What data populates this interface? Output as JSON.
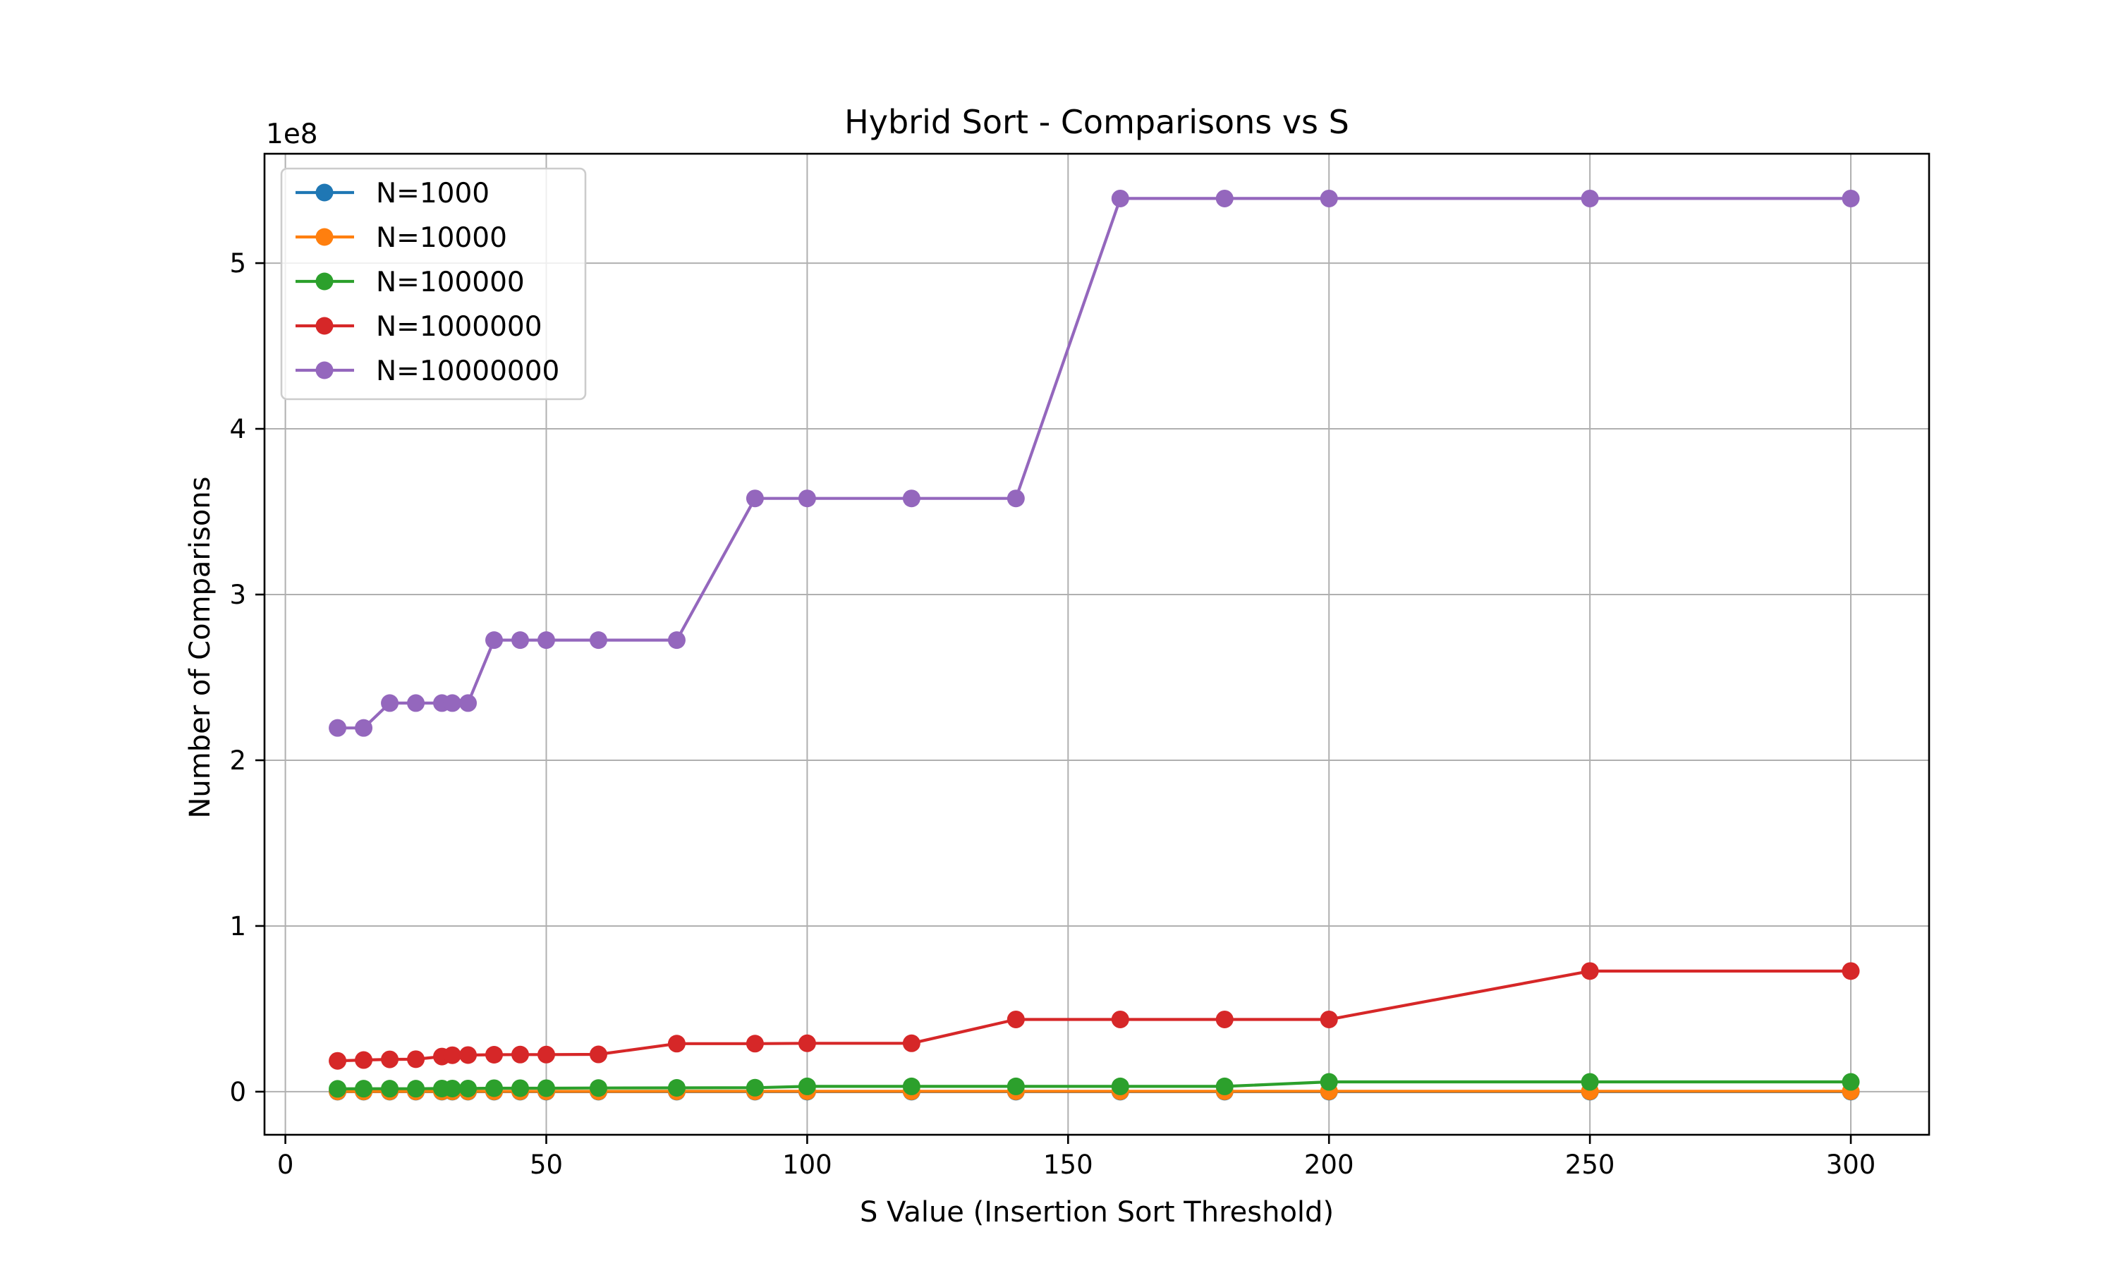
{
  "chart_data": {
    "type": "line",
    "title": "Hybrid Sort - Comparisons vs S",
    "xlabel": "S Value (Insertion Sort Threshold)",
    "ylabel": "Number of Comparisons",
    "y_offset_label": "1e8",
    "y_scale_factor": 100000000,
    "xlim": [
      -4,
      315
    ],
    "ylim": [
      -26000000,
      566000000
    ],
    "xticks": [
      0,
      50,
      100,
      150,
      200,
      250,
      300
    ],
    "xtick_labels": [
      "0",
      "50",
      "100",
      "150",
      "200",
      "250",
      "300"
    ],
    "yticks": [
      0,
      100000000,
      200000000,
      300000000,
      400000000,
      500000000
    ],
    "ytick_labels": [
      "0",
      "1",
      "2",
      "3",
      "4",
      "5"
    ],
    "grid": true,
    "legend_position": "upper-left",
    "x": [
      10,
      15,
      20,
      25,
      30,
      32,
      35,
      40,
      45,
      50,
      60,
      75,
      90,
      100,
      120,
      140,
      160,
      180,
      200,
      250,
      300
    ],
    "series": [
      {
        "name": "N=1000",
        "color": "#1f77b4",
        "values": [
          11000,
          12000,
          13000,
          13000,
          14000,
          14000,
          14000,
          15000,
          15000,
          15000,
          16000,
          17000,
          18000,
          18000,
          19000,
          20000,
          21000,
          21000,
          22000,
          23000,
          24000
        ]
      },
      {
        "name": "N=10000",
        "color": "#ff7f0e",
        "values": [
          140000,
          150000,
          150000,
          150000,
          160000,
          160000,
          160000,
          180000,
          180000,
          180000,
          180000,
          200000,
          200000,
          230000,
          230000,
          230000,
          230000,
          230000,
          250000,
          250000,
          250000
        ]
      },
      {
        "name": "N=100000",
        "color": "#2ca02c",
        "values": [
          1700000,
          1800000,
          1800000,
          1800000,
          1900000,
          1900000,
          1900000,
          2100000,
          2100000,
          2100000,
          2200000,
          2300000,
          2400000,
          3200000,
          3200000,
          3200000,
          3200000,
          3200000,
          5900000,
          5900000,
          5900000
        ]
      },
      {
        "name": "N=1000000",
        "color": "#d62728",
        "values": [
          18600000,
          19100000,
          19500000,
          19600000,
          21200000,
          22000000,
          22100000,
          22300000,
          22400000,
          22400000,
          22500000,
          29000000,
          29000000,
          29200000,
          29200000,
          43600000,
          43600000,
          43600000,
          43600000,
          72800000,
          72800000
        ]
      },
      {
        "name": "N=10000000",
        "color": "#9467bd",
        "values": [
          219500000,
          219500000,
          234500000,
          234500000,
          234500000,
          234500000,
          234500000,
          272500000,
          272500000,
          272500000,
          272500000,
          272500000,
          358000000,
          358000000,
          358000000,
          358000000,
          539000000,
          539000000,
          539000000,
          539000000,
          539000000
        ]
      }
    ]
  }
}
